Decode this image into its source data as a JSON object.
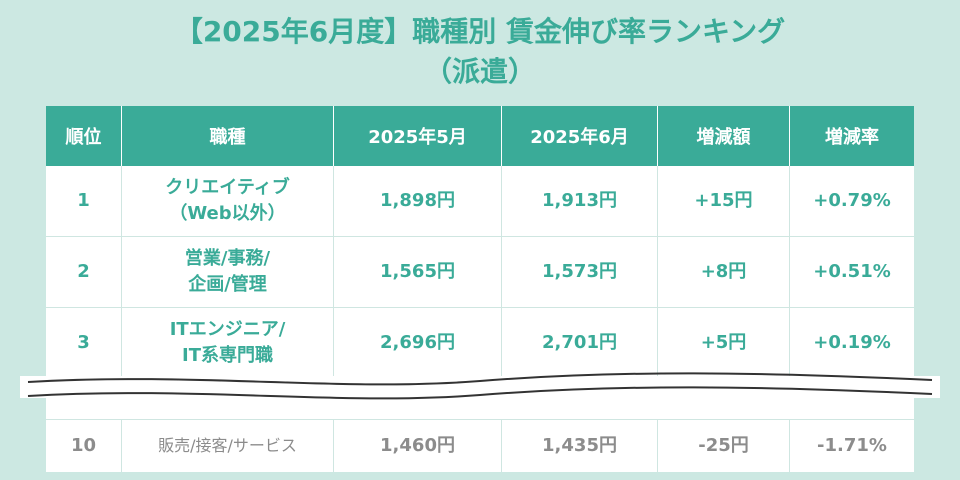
{
  "title": {
    "line1": "【2025年6月度】職種別 賃金伸び率ランキング",
    "line2": "（派遣）"
  },
  "table": {
    "headers": [
      "順位",
      "職種",
      "2025年5月",
      "2025年6月",
      "増減額",
      "増減率"
    ],
    "rows": [
      {
        "rank": "1",
        "job1": "クリエイティブ",
        "job2": "（Web以外）",
        "may": "1,898円",
        "june": "1,913円",
        "diff": "+15円",
        "rate": "+0.79%"
      },
      {
        "rank": "2",
        "job1": "営業/事務/",
        "job2": "企画/管理",
        "may": "1,565円",
        "june": "1,573円",
        "diff": "+8円",
        "rate": "+0.51%"
      },
      {
        "rank": "3",
        "job1": "ITエンジニア/",
        "job2": "IT系専門職",
        "may": "2,696円",
        "june": "2,701円",
        "diff": "+5円",
        "rate": "+0.19%"
      }
    ],
    "last_row": {
      "rank": "10",
      "job": "販売/接客/サービス",
      "may": "1,460円",
      "june": "1,435円",
      "diff": "-25円",
      "rate": "-1.71%"
    }
  },
  "colors": {
    "accent": "#3aab98",
    "background": "#cce8e2",
    "muted": "#8c8c8c"
  }
}
